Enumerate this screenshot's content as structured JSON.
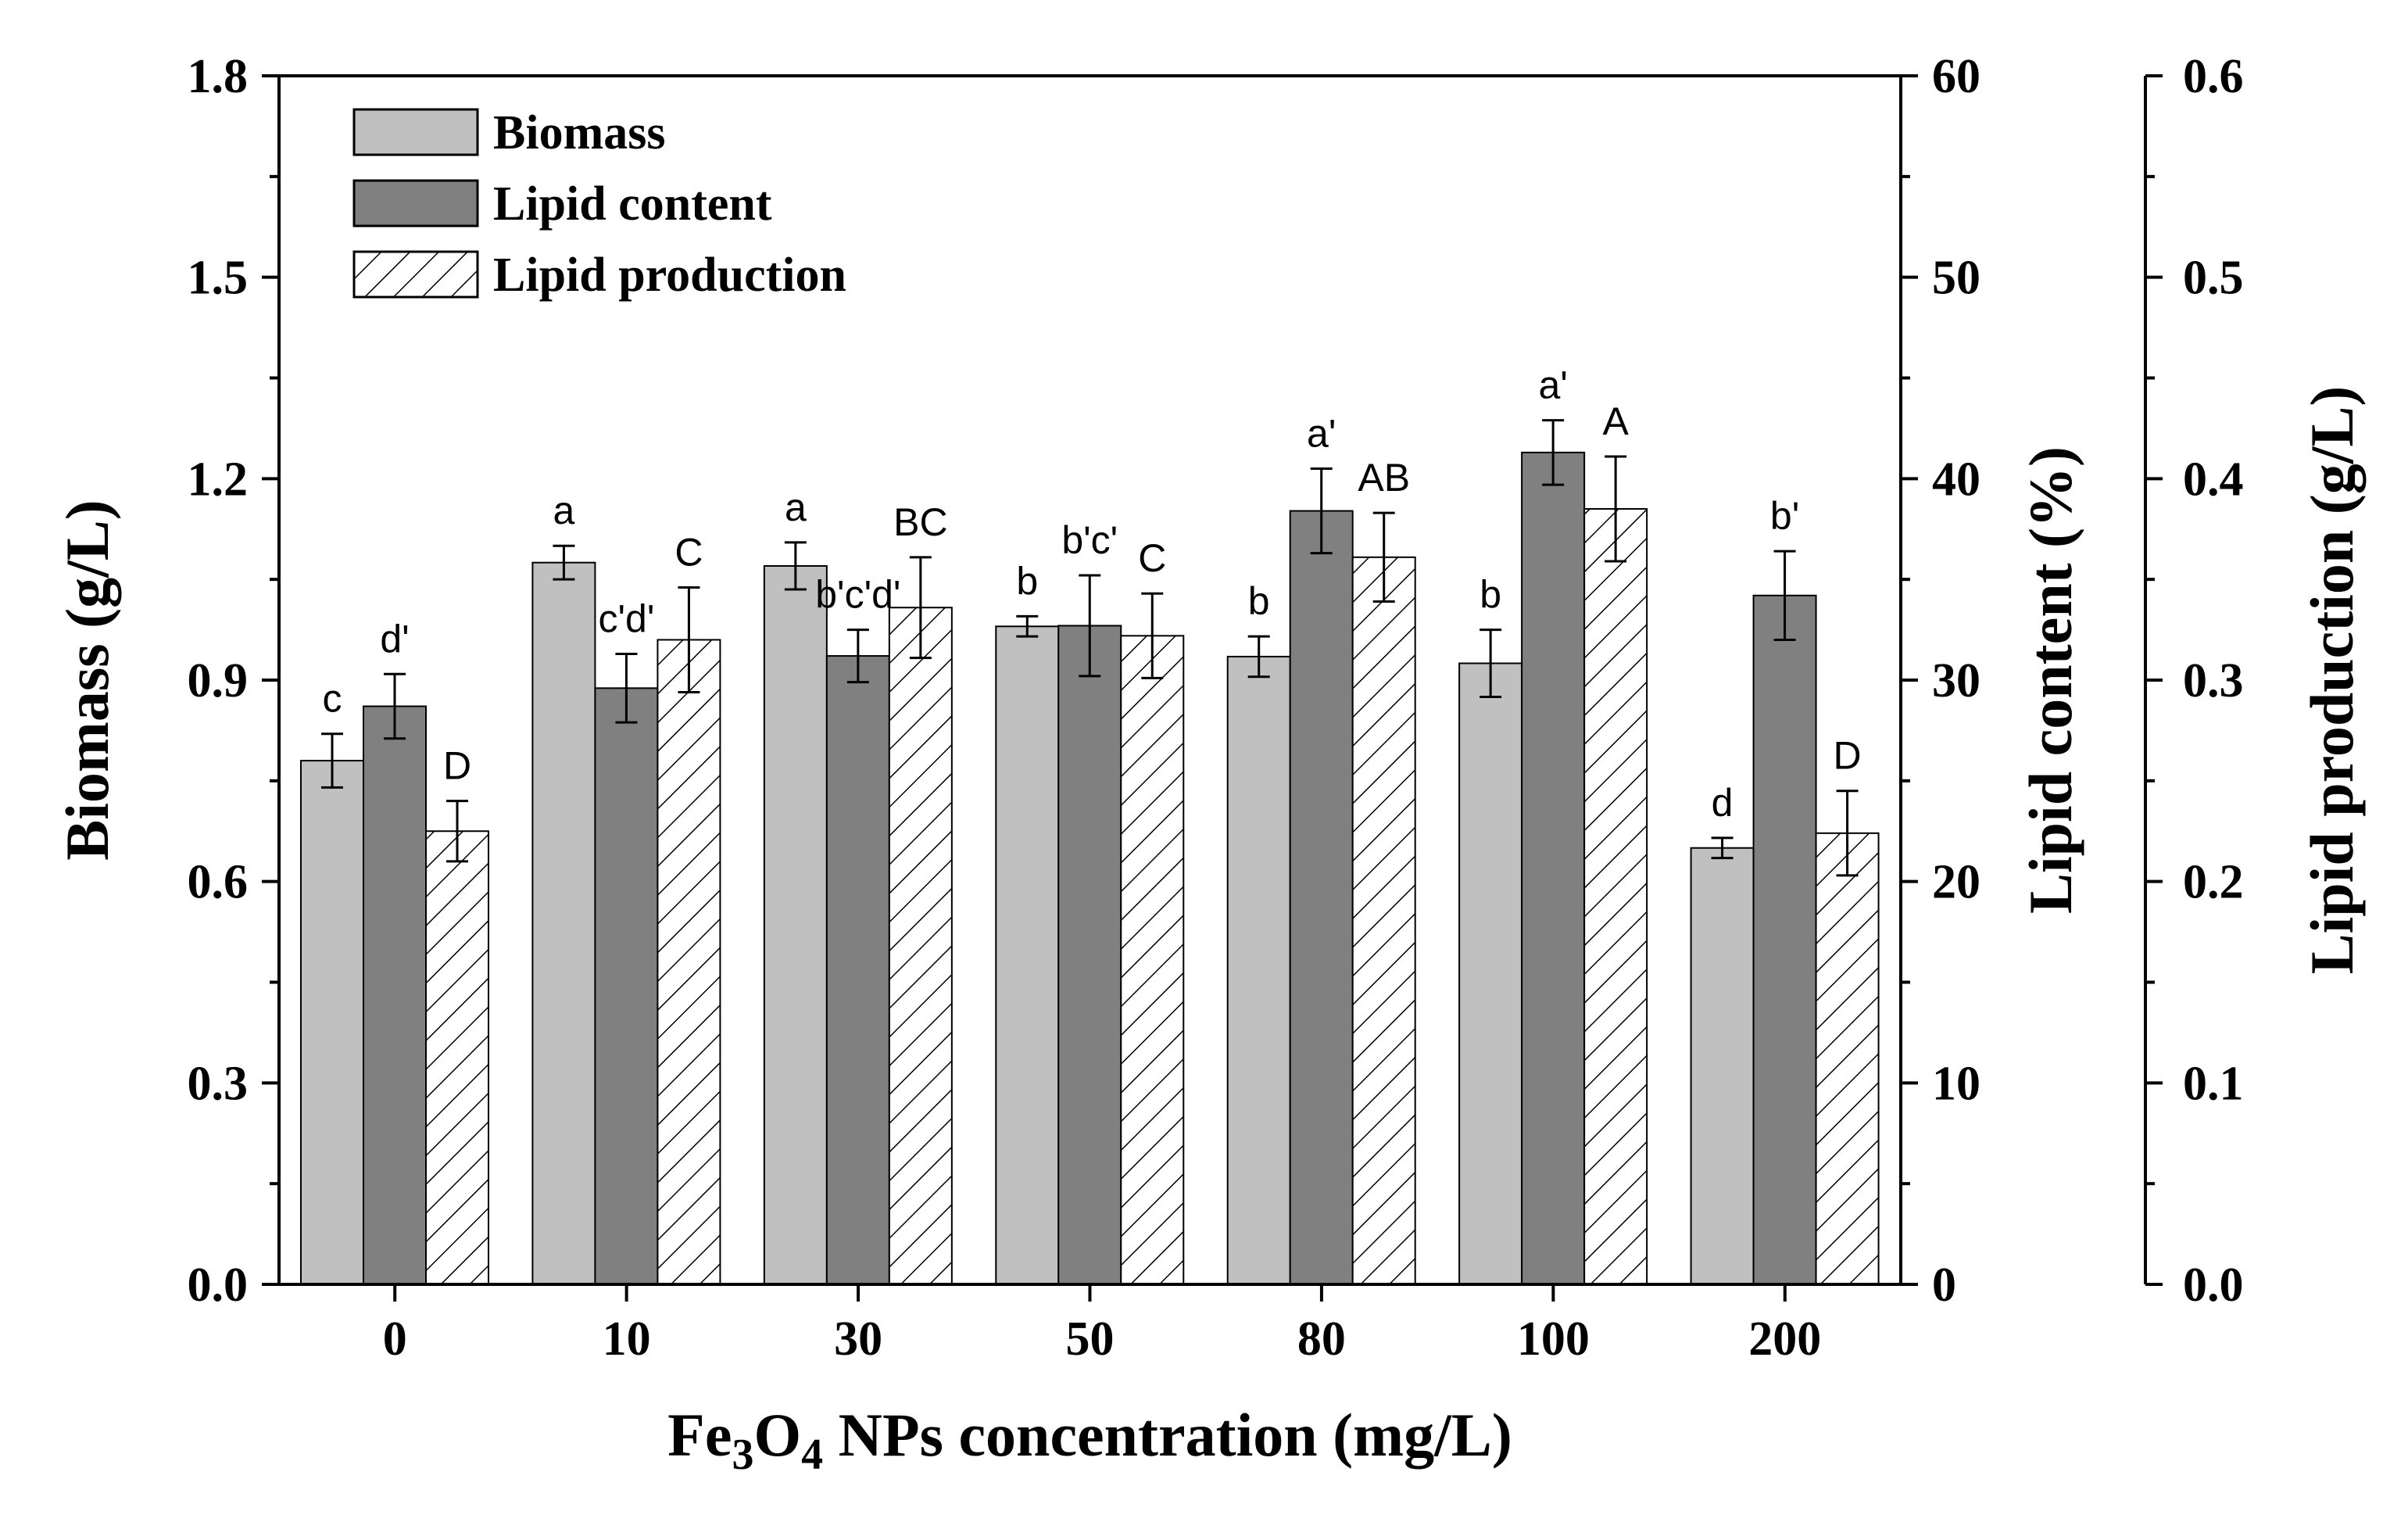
{
  "chart_data": {
    "type": "bar",
    "categories": [
      "0",
      "10",
      "30",
      "50",
      "80",
      "100",
      "200"
    ],
    "xlabel": {
      "prefix": "Fe",
      "sub1": "3",
      "mid": "O",
      "sub2": "4",
      "suffix": " NPs concentration (mg/L)"
    },
    "axes": {
      "left": {
        "label": "Biomass (g/L)",
        "min": 0,
        "max": 1.8,
        "ticks": [
          "0.0",
          "0.3",
          "0.6",
          "0.9",
          "1.2",
          "1.5",
          "1.8"
        ]
      },
      "right1": {
        "label": "Lipid content (%)",
        "min": 0,
        "max": 60,
        "ticks": [
          "0",
          "10",
          "20",
          "30",
          "40",
          "50",
          "60"
        ]
      },
      "right2": {
        "label": "Lipid production (g/L)",
        "min": 0,
        "max": 0.6,
        "ticks": [
          "0.0",
          "0.1",
          "0.2",
          "0.3",
          "0.4",
          "0.5",
          "0.6"
        ]
      }
    },
    "series": [
      {
        "name": "Biomass",
        "axis": "left",
        "color": "#c0c0c0",
        "pattern": "solid",
        "values": [
          0.78,
          1.075,
          1.07,
          0.98,
          0.935,
          0.925,
          0.65
        ],
        "errors": [
          0.04,
          0.025,
          0.035,
          0.015,
          0.03,
          0.05,
          0.015
        ],
        "labels": [
          "c",
          "a",
          "a",
          "b",
          "b",
          "b",
          "d"
        ]
      },
      {
        "name": "Lipid content",
        "axis": "right1",
        "color": "#808080",
        "pattern": "solid",
        "values": [
          28.7,
          29.6,
          31.2,
          32.7,
          38.4,
          41.3,
          34.2
        ],
        "errors": [
          1.6,
          1.7,
          1.3,
          2.5,
          2.1,
          1.6,
          2.2
        ],
        "labels": [
          "d'",
          "c'd'",
          "b'c'd'",
          "b'c'",
          "a'",
          "a'",
          "b'"
        ]
      },
      {
        "name": "Lipid production",
        "axis": "right2",
        "color": "#ffffff",
        "pattern": "hatch",
        "values": [
          0.225,
          0.32,
          0.336,
          0.322,
          0.361,
          0.385,
          0.224
        ],
        "errors": [
          0.015,
          0.026,
          0.025,
          0.021,
          0.022,
          0.026,
          0.021
        ],
        "labels": [
          "D",
          "C",
          "BC",
          "C",
          "AB",
          "A",
          "D"
        ]
      }
    ],
    "legend": {
      "position": "top-left",
      "entries": [
        "Biomass",
        "Lipid content",
        "Lipid production"
      ]
    }
  }
}
